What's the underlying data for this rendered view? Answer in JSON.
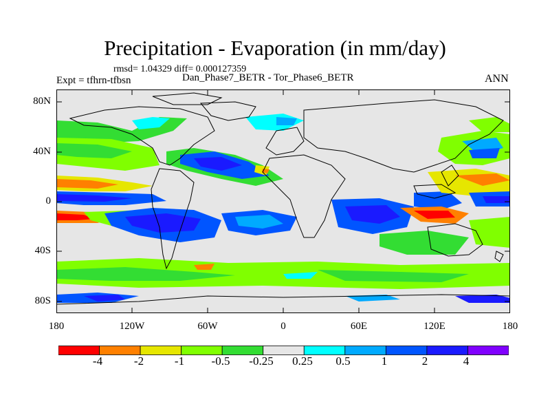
{
  "plot": {
    "title": "Precipitation - Evaporation (in mm/day)",
    "stats": "rmsd= 1.04329 diff= 0.000127359",
    "experiment": "Expt = tfhrn-tfbsn",
    "cases": "Dan_Phase7_BETR - Tor_Phase6_BETR",
    "season": "ANN"
  },
  "axes": {
    "lat_labels": [
      "80N",
      "40N",
      "0",
      "40S",
      "80S"
    ],
    "lon_labels": [
      "180",
      "120W",
      "60W",
      "0",
      "60E",
      "120E",
      "180"
    ]
  },
  "colorbar": {
    "labels": [
      "-4",
      "-2",
      "-1",
      "-0.5",
      "-0.25",
      "0.25",
      "0.5",
      "1",
      "2",
      "4"
    ],
    "colors": [
      "#ff0000",
      "#ff8000",
      "#e6e600",
      "#80ff00",
      "#33dd33",
      "#e6e6e6",
      "#00ffff",
      "#00aaff",
      "#0055ff",
      "#1a1aff",
      "#8000ff"
    ]
  }
}
